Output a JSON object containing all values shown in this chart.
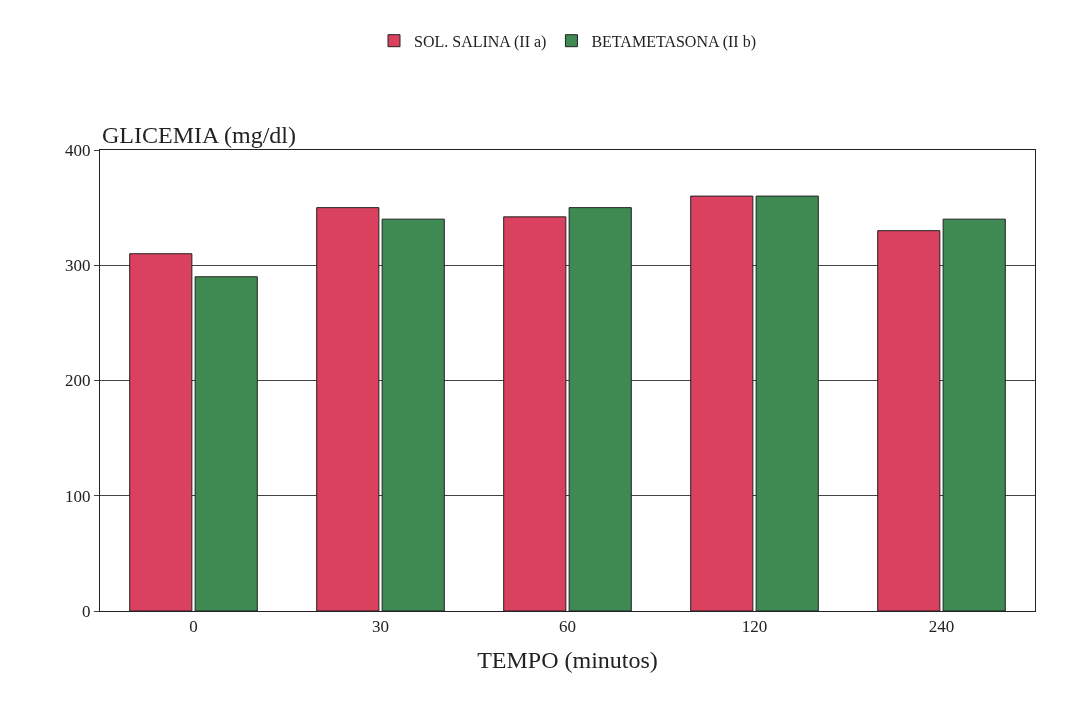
{
  "chart_data": {
    "type": "bar",
    "xlabel": "TEMPO (minutos)",
    "ylabel": "GLICEMIA (mg/dl)",
    "categories": [
      "0",
      "30",
      "60",
      "120",
      "240"
    ],
    "series": [
      {
        "name": "SOL. SALINA (II a)",
        "color": "#d9415f",
        "values": [
          310,
          350,
          342,
          360,
          330
        ]
      },
      {
        "name": "BETAMETASONA (II b)",
        "color": "#3e8a52",
        "values": [
          290,
          340,
          350,
          360,
          340
        ]
      }
    ],
    "ylim": [
      0,
      400
    ],
    "yticks": [
      0,
      100,
      200,
      300,
      400
    ],
    "grid": "y",
    "legend": "top"
  }
}
